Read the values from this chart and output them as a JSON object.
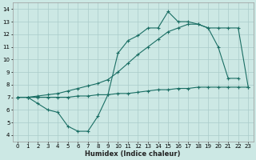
{
  "xlabel": "Humidex (Indice chaleur)",
  "background_color": "#cce8e4",
  "grid_color": "#aaccca",
  "line_color": "#1a6e64",
  "xlim": [
    -0.5,
    23.5
  ],
  "ylim": [
    3.5,
    14.5
  ],
  "xticks": [
    0,
    1,
    2,
    3,
    4,
    5,
    6,
    7,
    8,
    9,
    10,
    11,
    12,
    13,
    14,
    15,
    16,
    17,
    18,
    19,
    20,
    21,
    22,
    23
  ],
  "yticks": [
    4,
    5,
    6,
    7,
    8,
    9,
    10,
    11,
    12,
    13,
    14
  ],
  "series1_x": [
    0,
    1,
    2,
    3,
    4,
    5,
    6,
    7,
    8,
    9,
    10,
    11,
    12,
    13,
    14,
    15,
    16,
    17,
    18,
    19,
    20,
    21,
    22
  ],
  "series1_y": [
    7.0,
    7.0,
    6.5,
    6.0,
    5.8,
    4.7,
    4.3,
    4.3,
    5.5,
    7.2,
    10.5,
    11.5,
    11.9,
    12.5,
    12.5,
    13.8,
    13.0,
    13.0,
    12.8,
    12.5,
    11.0,
    8.5,
    8.5
  ],
  "series2_x": [
    0,
    1,
    2,
    3,
    4,
    5,
    6,
    7,
    8,
    9,
    10,
    11,
    12,
    13,
    14,
    15,
    16,
    17,
    18,
    19,
    20,
    21,
    22,
    23
  ],
  "series2_y": [
    7.0,
    7.0,
    7.0,
    7.0,
    7.0,
    7.0,
    7.1,
    7.1,
    7.2,
    7.2,
    7.3,
    7.3,
    7.4,
    7.5,
    7.6,
    7.6,
    7.7,
    7.7,
    7.8,
    7.8,
    7.8,
    7.8,
    7.8,
    7.8
  ],
  "series3_x": [
    0,
    1,
    2,
    3,
    4,
    5,
    6,
    7,
    8,
    9,
    10,
    11,
    12,
    13,
    14,
    15,
    16,
    17,
    18,
    19,
    20,
    21,
    22,
    23
  ],
  "series3_y": [
    7.0,
    7.0,
    7.1,
    7.2,
    7.3,
    7.5,
    7.7,
    7.9,
    8.1,
    8.4,
    9.0,
    9.7,
    10.4,
    11.0,
    11.6,
    12.2,
    12.5,
    12.8,
    12.8,
    12.5,
    12.5,
    12.5,
    12.5,
    7.8
  ]
}
